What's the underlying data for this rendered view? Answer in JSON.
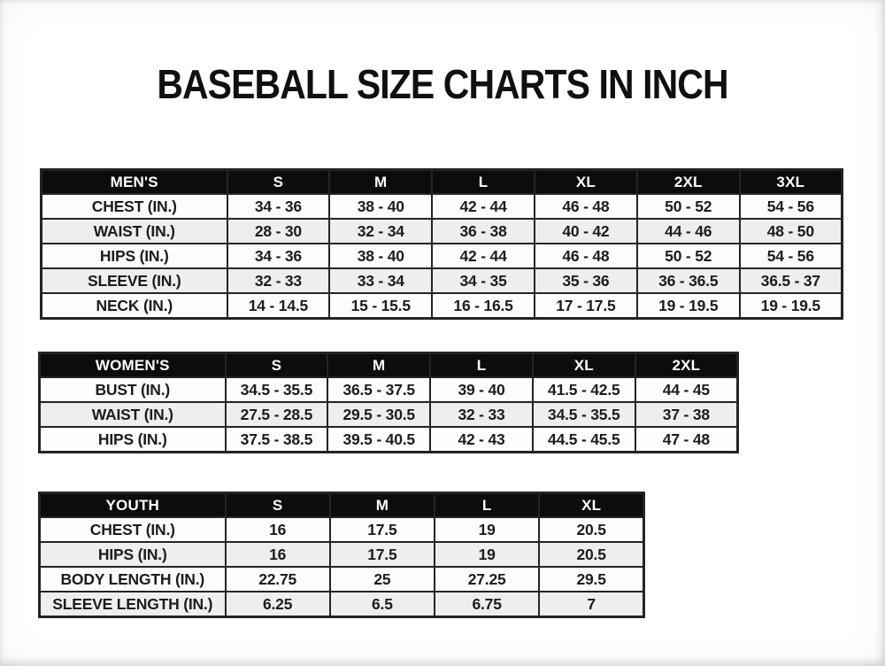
{
  "page": {
    "title": "BASEBALL SIZE CHARTS IN INCH"
  },
  "colors": {
    "page_bg": "#ffffff",
    "header_bg": "#0c0c0c",
    "header_text": "#ffffff",
    "row_bg": "#fdfdfd",
    "row_alt_bg": "#eeeeee",
    "border": "#242424",
    "text": "#1c1c1c"
  },
  "chart_data": [
    {
      "type": "table",
      "name": "mens",
      "header": [
        "MEN'S",
        "S",
        "M",
        "L",
        "XL",
        "2XL",
        "3XL"
      ],
      "rows": [
        [
          "CHEST (IN.)",
          "34 - 36",
          "38 - 40",
          "42 - 44",
          "46 - 48",
          "50 - 52",
          "54 - 56"
        ],
        [
          "WAIST (IN.)",
          "28 - 30",
          "32 - 34",
          "36 - 38",
          "40 - 42",
          "44 - 46",
          "48 - 50"
        ],
        [
          "HIPS (IN.)",
          "34 - 36",
          "38 - 40",
          "42 - 44",
          "46 - 48",
          "50 - 52",
          "54 - 56"
        ],
        [
          "SLEEVE (IN.)",
          "32 - 33",
          "33 - 34",
          "34 - 35",
          "35 - 36",
          "36 - 36.5",
          "36.5 - 37"
        ],
        [
          "NECK (IN.)",
          "14 - 14.5",
          "15 - 15.5",
          "16 - 16.5",
          "17 - 17.5",
          "19 - 19.5",
          "19 - 19.5"
        ]
      ]
    },
    {
      "type": "table",
      "name": "womens",
      "header": [
        "WOMEN'S",
        "S",
        "M",
        "L",
        "XL",
        "2XL"
      ],
      "rows": [
        [
          "BUST (IN.)",
          "34.5 - 35.5",
          "36.5 - 37.5",
          "39 - 40",
          "41.5 - 42.5",
          "44 - 45"
        ],
        [
          "WAIST (IN.)",
          "27.5 - 28.5",
          "29.5 - 30.5",
          "32 - 33",
          "34.5 - 35.5",
          "37 - 38"
        ],
        [
          "HIPS (IN.)",
          "37.5 - 38.5",
          "39.5 - 40.5",
          "42 - 43",
          "44.5 - 45.5",
          "47 - 48"
        ]
      ]
    },
    {
      "type": "table",
      "name": "youth",
      "header": [
        "YOUTH",
        "S",
        "M",
        "L",
        "XL"
      ],
      "rows": [
        [
          "CHEST (IN.)",
          "16",
          "17.5",
          "19",
          "20.5"
        ],
        [
          "HIPS (IN.)",
          "16",
          "17.5",
          "19",
          "20.5"
        ],
        [
          "BODY LENGTH (IN.)",
          "22.75",
          "25",
          "27.25",
          "29.5"
        ],
        [
          "SLEEVE LENGTH (IN.)",
          "6.25",
          "6.5",
          "6.75",
          "7"
        ]
      ]
    }
  ]
}
